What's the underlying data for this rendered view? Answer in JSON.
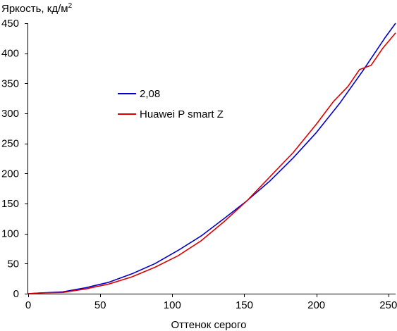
{
  "chart_data": {
    "type": "line",
    "ylabel": "Яркость, кд/м",
    "ylabel_sup": "2",
    "xlabel": "Оттенок серого",
    "xlim": [
      0,
      255
    ],
    "ylim": [
      0,
      450
    ],
    "xticks": [
      0,
      50,
      100,
      150,
      200,
      250
    ],
    "yticks": [
      0,
      50,
      100,
      150,
      200,
      250,
      300,
      350,
      400,
      450
    ],
    "grid": false,
    "legend_position": "left-center",
    "series": [
      {
        "name": "2,08",
        "color": "#0000cc",
        "x": [
          0,
          8,
          24,
          40,
          56,
          72,
          88,
          104,
          120,
          136,
          152,
          168,
          184,
          200,
          216,
          232,
          248,
          255
        ],
        "y": [
          0,
          1,
          3,
          10,
          19,
          33,
          50,
          72,
          96,
          125,
          155,
          188,
          226,
          268,
          316,
          370,
          427,
          450
        ]
      },
      {
        "name": "Huawei P smart Z",
        "color": "#dd0000",
        "x": [
          0,
          8,
          24,
          40,
          56,
          72,
          88,
          104,
          120,
          136,
          152,
          168,
          184,
          200,
          212,
          222,
          230,
          238,
          246,
          255
        ],
        "y": [
          0,
          1,
          2,
          8,
          16,
          28,
          44,
          63,
          88,
          120,
          155,
          195,
          235,
          282,
          320,
          345,
          373,
          380,
          408,
          434
        ]
      }
    ]
  }
}
